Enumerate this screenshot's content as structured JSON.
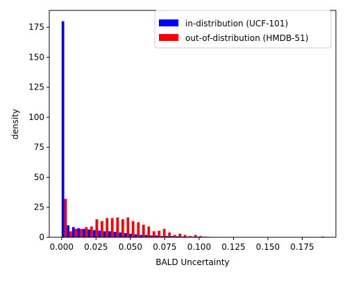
{
  "chart_data": {
    "type": "bar",
    "xlabel": "BALD Uncertainty",
    "ylabel": "density",
    "xlim": [
      -0.009,
      0.1995
    ],
    "ylim": [
      0,
      189
    ],
    "x_ticks": [
      0.0,
      0.025,
      0.05,
      0.075,
      0.1,
      0.125,
      0.15,
      0.175
    ],
    "x_tick_labels": [
      "0.000",
      "0.025",
      "0.050",
      "0.075",
      "0.100",
      "0.125",
      "0.150",
      "0.175"
    ],
    "y_ticks": [
      0,
      25,
      50,
      75,
      100,
      125,
      150,
      175
    ],
    "y_tick_labels": [
      "0",
      "25",
      "50",
      "75",
      "100",
      "125",
      "150",
      "175"
    ],
    "bin_width": 0.00378,
    "legend_position": "top-right",
    "grid": false,
    "series": [
      {
        "name": "in-distribution (UCF-101)",
        "color": "#0000ff",
        "bins": [
          [
            0.0,
            180.0
          ],
          [
            0.0038,
            10.0
          ],
          [
            0.0076,
            8.5
          ],
          [
            0.0113,
            7.5
          ],
          [
            0.0151,
            7.0
          ],
          [
            0.0189,
            6.5
          ],
          [
            0.0227,
            6.0
          ],
          [
            0.0265,
            5.5
          ],
          [
            0.0302,
            5.0
          ],
          [
            0.034,
            5.0
          ],
          [
            0.0378,
            4.5
          ],
          [
            0.0416,
            4.0
          ],
          [
            0.0454,
            3.5
          ],
          [
            0.0491,
            3.0
          ],
          [
            0.0529,
            2.5
          ],
          [
            0.0567,
            2.0
          ],
          [
            0.0605,
            2.0
          ],
          [
            0.0643,
            1.5
          ],
          [
            0.068,
            1.5
          ],
          [
            0.0718,
            1.0
          ],
          [
            0.0756,
            1.0
          ],
          [
            0.0794,
            1.0
          ],
          [
            0.0832,
            0.8
          ],
          [
            0.0869,
            0.6
          ],
          [
            0.0907,
            0.6
          ],
          [
            0.0945,
            0.5
          ],
          [
            0.0983,
            0.5
          ],
          [
            0.1021,
            0.4
          ],
          [
            0.1058,
            0.4
          ],
          [
            0.1096,
            0.3
          ],
          [
            0.1134,
            0.3
          ],
          [
            0.1172,
            0.2
          ],
          [
            0.121,
            0.2
          ],
          [
            0.1247,
            0.2
          ],
          [
            0.1285,
            0.2
          ],
          [
            0.1323,
            0.2
          ]
        ]
      },
      {
        "name": "out-of-distribution (HMDB-51)",
        "color": "#ff0000",
        "bins": [
          [
            0.0,
            32.0
          ],
          [
            0.0038,
            5.0
          ],
          [
            0.0076,
            7.0
          ],
          [
            0.0113,
            7.0
          ],
          [
            0.0151,
            8.5
          ],
          [
            0.0189,
            9.0
          ],
          [
            0.0227,
            15.0
          ],
          [
            0.0265,
            13.5
          ],
          [
            0.0302,
            16.0
          ],
          [
            0.034,
            16.0
          ],
          [
            0.0378,
            16.5
          ],
          [
            0.0416,
            15.0
          ],
          [
            0.0454,
            16.5
          ],
          [
            0.0491,
            13.5
          ],
          [
            0.0529,
            12.5
          ],
          [
            0.0567,
            10.5
          ],
          [
            0.0605,
            9.0
          ],
          [
            0.0643,
            5.0
          ],
          [
            0.068,
            5.5
          ],
          [
            0.0718,
            7.0
          ],
          [
            0.0756,
            4.0
          ],
          [
            0.0794,
            2.0
          ],
          [
            0.0832,
            3.0
          ],
          [
            0.0869,
            2.0
          ],
          [
            0.0907,
            1.0
          ],
          [
            0.0945,
            2.0
          ],
          [
            0.0983,
            1.0
          ],
          [
            0.1021,
            0.5
          ],
          [
            0.1058,
            0.3
          ],
          [
            0.1096,
            0.3
          ],
          [
            0.1134,
            0.3
          ],
          [
            0.1172,
            0.3
          ],
          [
            0.121,
            0.3
          ],
          [
            0.1247,
            0.3
          ],
          [
            0.1285,
            0.3
          ],
          [
            0.1323,
            0.3
          ],
          [
            0.187,
            0.6
          ]
        ]
      }
    ]
  }
}
